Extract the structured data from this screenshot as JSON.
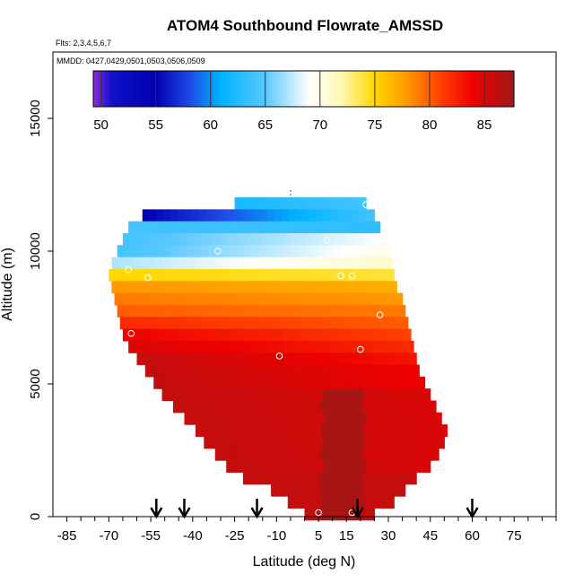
{
  "chart_data": {
    "type": "heatmap",
    "title": "ATOM4 Southbound Flowrate_AMSSD",
    "flights_label": "Flts: 2,3,4,5,6,7",
    "dates_label": "MMDD: 0427,0429,0501,0503,0506,0509",
    "xlabel": "Latitude (deg N)",
    "ylabel": "Altitude (m)",
    "xlim": [
      -90,
      90
    ],
    "ylim": [
      0,
      17500
    ],
    "xticks": [
      -85,
      -70,
      -55,
      -40,
      -25,
      -10,
      5,
      15,
      30,
      45,
      60,
      75
    ],
    "xticks_minor": [
      -80,
      -75,
      -65,
      -60,
      -50,
      -45,
      -35,
      -30,
      -20,
      -15,
      -5,
      0,
      10,
      20,
      25,
      35,
      40,
      50,
      55,
      65,
      70,
      80,
      85,
      90
    ],
    "yticks": [
      0,
      5000,
      10000,
      15000
    ],
    "colorbar": {
      "min": 49.3,
      "max": 87.7,
      "ticks": [
        50,
        55,
        60,
        65,
        70,
        75,
        80,
        85
      ],
      "stops": [
        {
          "v": 49.3,
          "c": "#8a2be2"
        },
        {
          "v": 51.0,
          "c": "#1010c8"
        },
        {
          "v": 55.0,
          "c": "#0000b0"
        },
        {
          "v": 58.0,
          "c": "#1e46e6"
        },
        {
          "v": 61.0,
          "c": "#00b4ff"
        },
        {
          "v": 65.0,
          "c": "#5ac8ff"
        },
        {
          "v": 69.0,
          "c": "#ffffff"
        },
        {
          "v": 72.0,
          "c": "#fff8b0"
        },
        {
          "v": 75.0,
          "c": "#ffd700"
        },
        {
          "v": 78.0,
          "c": "#ff9800"
        },
        {
          "v": 81.0,
          "c": "#ff4000"
        },
        {
          "v": 84.0,
          "c": "#ee0000"
        },
        {
          "v": 87.7,
          "c": "#a01818"
        }
      ]
    },
    "section": {
      "bottom_lat_range": [
        5,
        20
      ],
      "levels": [
        {
          "alt": 11800,
          "x0": -25,
          "x1": 22,
          "v0": 62,
          "v1": 64
        },
        {
          "alt": 11350,
          "x0": -58,
          "x1": 25,
          "v0": 55,
          "v1": 64
        },
        {
          "alt": 10900,
          "x0": -63,
          "x1": 27,
          "v0": 64,
          "v1": 63
        },
        {
          "alt": 10450,
          "x0": -65,
          "x1": 28,
          "v0": 64,
          "v1": 69
        },
        {
          "alt": 10000,
          "x0": -67,
          "x1": 30,
          "v0": 64,
          "v1": 70
        },
        {
          "alt": 9550,
          "x0": -69,
          "x1": 31,
          "v0": 67,
          "v1": 71
        },
        {
          "alt": 9100,
          "x0": -70,
          "x1": 32,
          "v0": 75,
          "v1": 74
        },
        {
          "alt": 8650,
          "x0": -69,
          "x1": 33,
          "v0": 78,
          "v1": 77
        },
        {
          "alt": 8200,
          "x0": -68,
          "x1": 35,
          "v0": 79,
          "v1": 78
        },
        {
          "alt": 7750,
          "x0": -67,
          "x1": 36,
          "v0": 80,
          "v1": 79
        },
        {
          "alt": 7300,
          "x0": -66,
          "x1": 37,
          "v0": 82,
          "v1": 80
        },
        {
          "alt": 6850,
          "x0": -65,
          "x1": 38,
          "v0": 84,
          "v1": 81
        },
        {
          "alt": 6400,
          "x0": -63,
          "x1": 39,
          "v0": 85,
          "v1": 82
        },
        {
          "alt": 5950,
          "x0": -60,
          "x1": 40,
          "v0": 86,
          "v1": 83
        },
        {
          "alt": 5500,
          "x0": -57,
          "x1": 41,
          "v0": 86,
          "v1": 84
        },
        {
          "alt": 5050,
          "x0": -54,
          "x1": 43,
          "v0": 86,
          "v1": 84
        },
        {
          "alt": 4600,
          "x0": -51,
          "x1": 45,
          "v0": 86,
          "v1": 85
        },
        {
          "alt": 4150,
          "x0": -47,
          "x1": 47,
          "v0": 86,
          "v1": 85
        },
        {
          "alt": 3700,
          "x0": -43,
          "x1": 49,
          "v0": 86,
          "v1": 85
        },
        {
          "alt": 3250,
          "x0": -39,
          "x1": 51,
          "v0": 86,
          "v1": 85
        },
        {
          "alt": 2800,
          "x0": -36,
          "x1": 50,
          "v0": 86,
          "v1": 85
        },
        {
          "alt": 2350,
          "x0": -32,
          "x1": 48,
          "v0": 86,
          "v1": 85
        },
        {
          "alt": 1900,
          "x0": -28,
          "x1": 45,
          "v0": 86,
          "v1": 85
        },
        {
          "alt": 1450,
          "x0": -22,
          "x1": 40,
          "v0": 86,
          "v1": 86
        },
        {
          "alt": 1000,
          "x0": -12,
          "x1": 36,
          "v0": 86,
          "v1": 86
        },
        {
          "alt": 550,
          "x0": -6,
          "x1": 32,
          "v0": 86,
          "v1": 86
        },
        {
          "alt": 100,
          "x0": 0,
          "x1": 25,
          "v0": 86,
          "v1": 86
        }
      ]
    },
    "overlay_marks": [
      {
        "lat": -60,
        "alt": 11350
      },
      {
        "lat": 22,
        "alt": 11750
      },
      {
        "lat": -31,
        "alt": 10000
      },
      {
        "lat": 8,
        "alt": 10400
      },
      {
        "lat": 26,
        "alt": 10300
      },
      {
        "lat": -27,
        "alt": 9480
      },
      {
        "lat": -56,
        "alt": 9000
      },
      {
        "lat": 13,
        "alt": 9070
      },
      {
        "lat": 17,
        "alt": 9070
      },
      {
        "lat": -63,
        "alt": 9300
      },
      {
        "lat": 27,
        "alt": 7600
      },
      {
        "lat": -62,
        "alt": 6900
      },
      {
        "lat": -9,
        "alt": 6050
      },
      {
        "lat": 20,
        "alt": 6300
      },
      {
        "lat": 55,
        "alt": 3400
      },
      {
        "lat": 5,
        "alt": 150
      },
      {
        "lat": 17,
        "alt": 150
      }
    ],
    "profile_arrows": [
      -53,
      -43,
      -17,
      19,
      60
    ],
    "marker_tick_lat": -5,
    "marker_tick_alt": 12300
  }
}
